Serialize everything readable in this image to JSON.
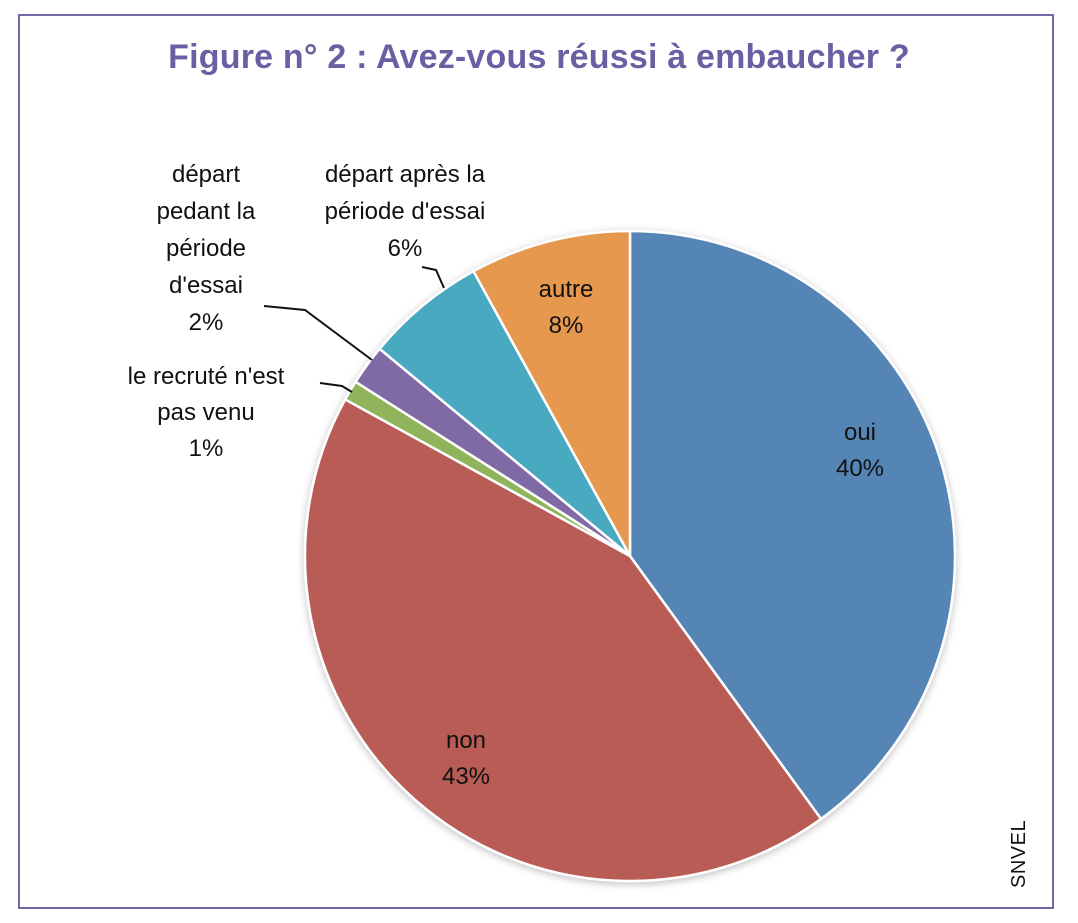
{
  "title": "Figure n° 2 : Avez-vous réussi à embaucher ?",
  "source": "SNVEL",
  "chart_data": {
    "type": "pie",
    "title": "Figure n° 2 : Avez-vous réussi à embaucher ?",
    "start_angle_deg": 0,
    "direction": "clockwise",
    "slices": [
      {
        "key": "oui",
        "name": "oui",
        "value": 40,
        "label": "40%",
        "color": "#5585b5",
        "label_lines": [
          "oui",
          "40%"
        ]
      },
      {
        "key": "non",
        "name": "non",
        "value": 43,
        "label": "43%",
        "color": "#b95b56",
        "label_lines": [
          "non",
          "43%"
        ]
      },
      {
        "key": "venu",
        "name": "le recruté n'est pas venu",
        "value": 1,
        "label": "1%",
        "color": "#8fb45c",
        "label_lines": [
          "le recruté n'est",
          "pas venu",
          "1%"
        ]
      },
      {
        "key": "pendant",
        "name": "départ pedant la période d'essai",
        "value": 2,
        "label": "2%",
        "color": "#7f6aa5",
        "label_lines": [
          "départ",
          "pedant la",
          "période",
          "d'essai",
          "2%"
        ]
      },
      {
        "key": "apres",
        "name": "départ après la période d'essai",
        "value": 6,
        "label": "6%",
        "color": "#4aa9c1",
        "label_lines": [
          "départ après la",
          "période d'essai",
          "6%"
        ]
      },
      {
        "key": "autre",
        "name": "autre",
        "value": 8,
        "label": "8%",
        "color": "#e6984f",
        "label_lines": [
          "autre",
          "8%"
        ]
      }
    ]
  }
}
